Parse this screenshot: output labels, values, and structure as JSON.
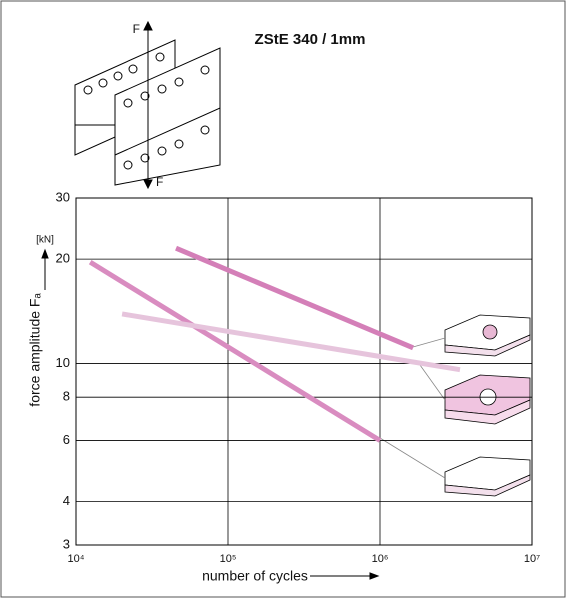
{
  "chart_data": {
    "type": "line",
    "title": "ZStE 340 / 1mm",
    "annotations": [
      "F",
      "F"
    ],
    "unit_label": "[kN]",
    "x_label": "number of cycles",
    "y_label": "force amplitude Fₐ",
    "log_x": true,
    "log_y": true,
    "grid": true,
    "xlim": [
      10000,
      10000000
    ],
    "ylim": [
      3,
      30
    ],
    "xticks": [
      {
        "value": 10000,
        "label": "10⁴"
      },
      {
        "value": 100000,
        "label": "10⁵"
      },
      {
        "value": 1000000,
        "label": "10⁶"
      },
      {
        "value": 10000000,
        "label": "10⁷"
      }
    ],
    "yticks": [
      3,
      4,
      6,
      8,
      10,
      20,
      30
    ],
    "series": [
      {
        "color": "#d47fb8",
        "x": [
          45500,
          1650000
        ],
        "values": [
          21.5,
          11.1
        ]
      },
      {
        "color": "#d98cc0",
        "x": [
          12400,
          1000000
        ],
        "values": [
          19.6,
          6
        ]
      },
      {
        "color": "#e6c4dc",
        "x": [
          20100,
          3360000
        ],
        "values": [
          13.9,
          9.6
        ]
      }
    ]
  }
}
